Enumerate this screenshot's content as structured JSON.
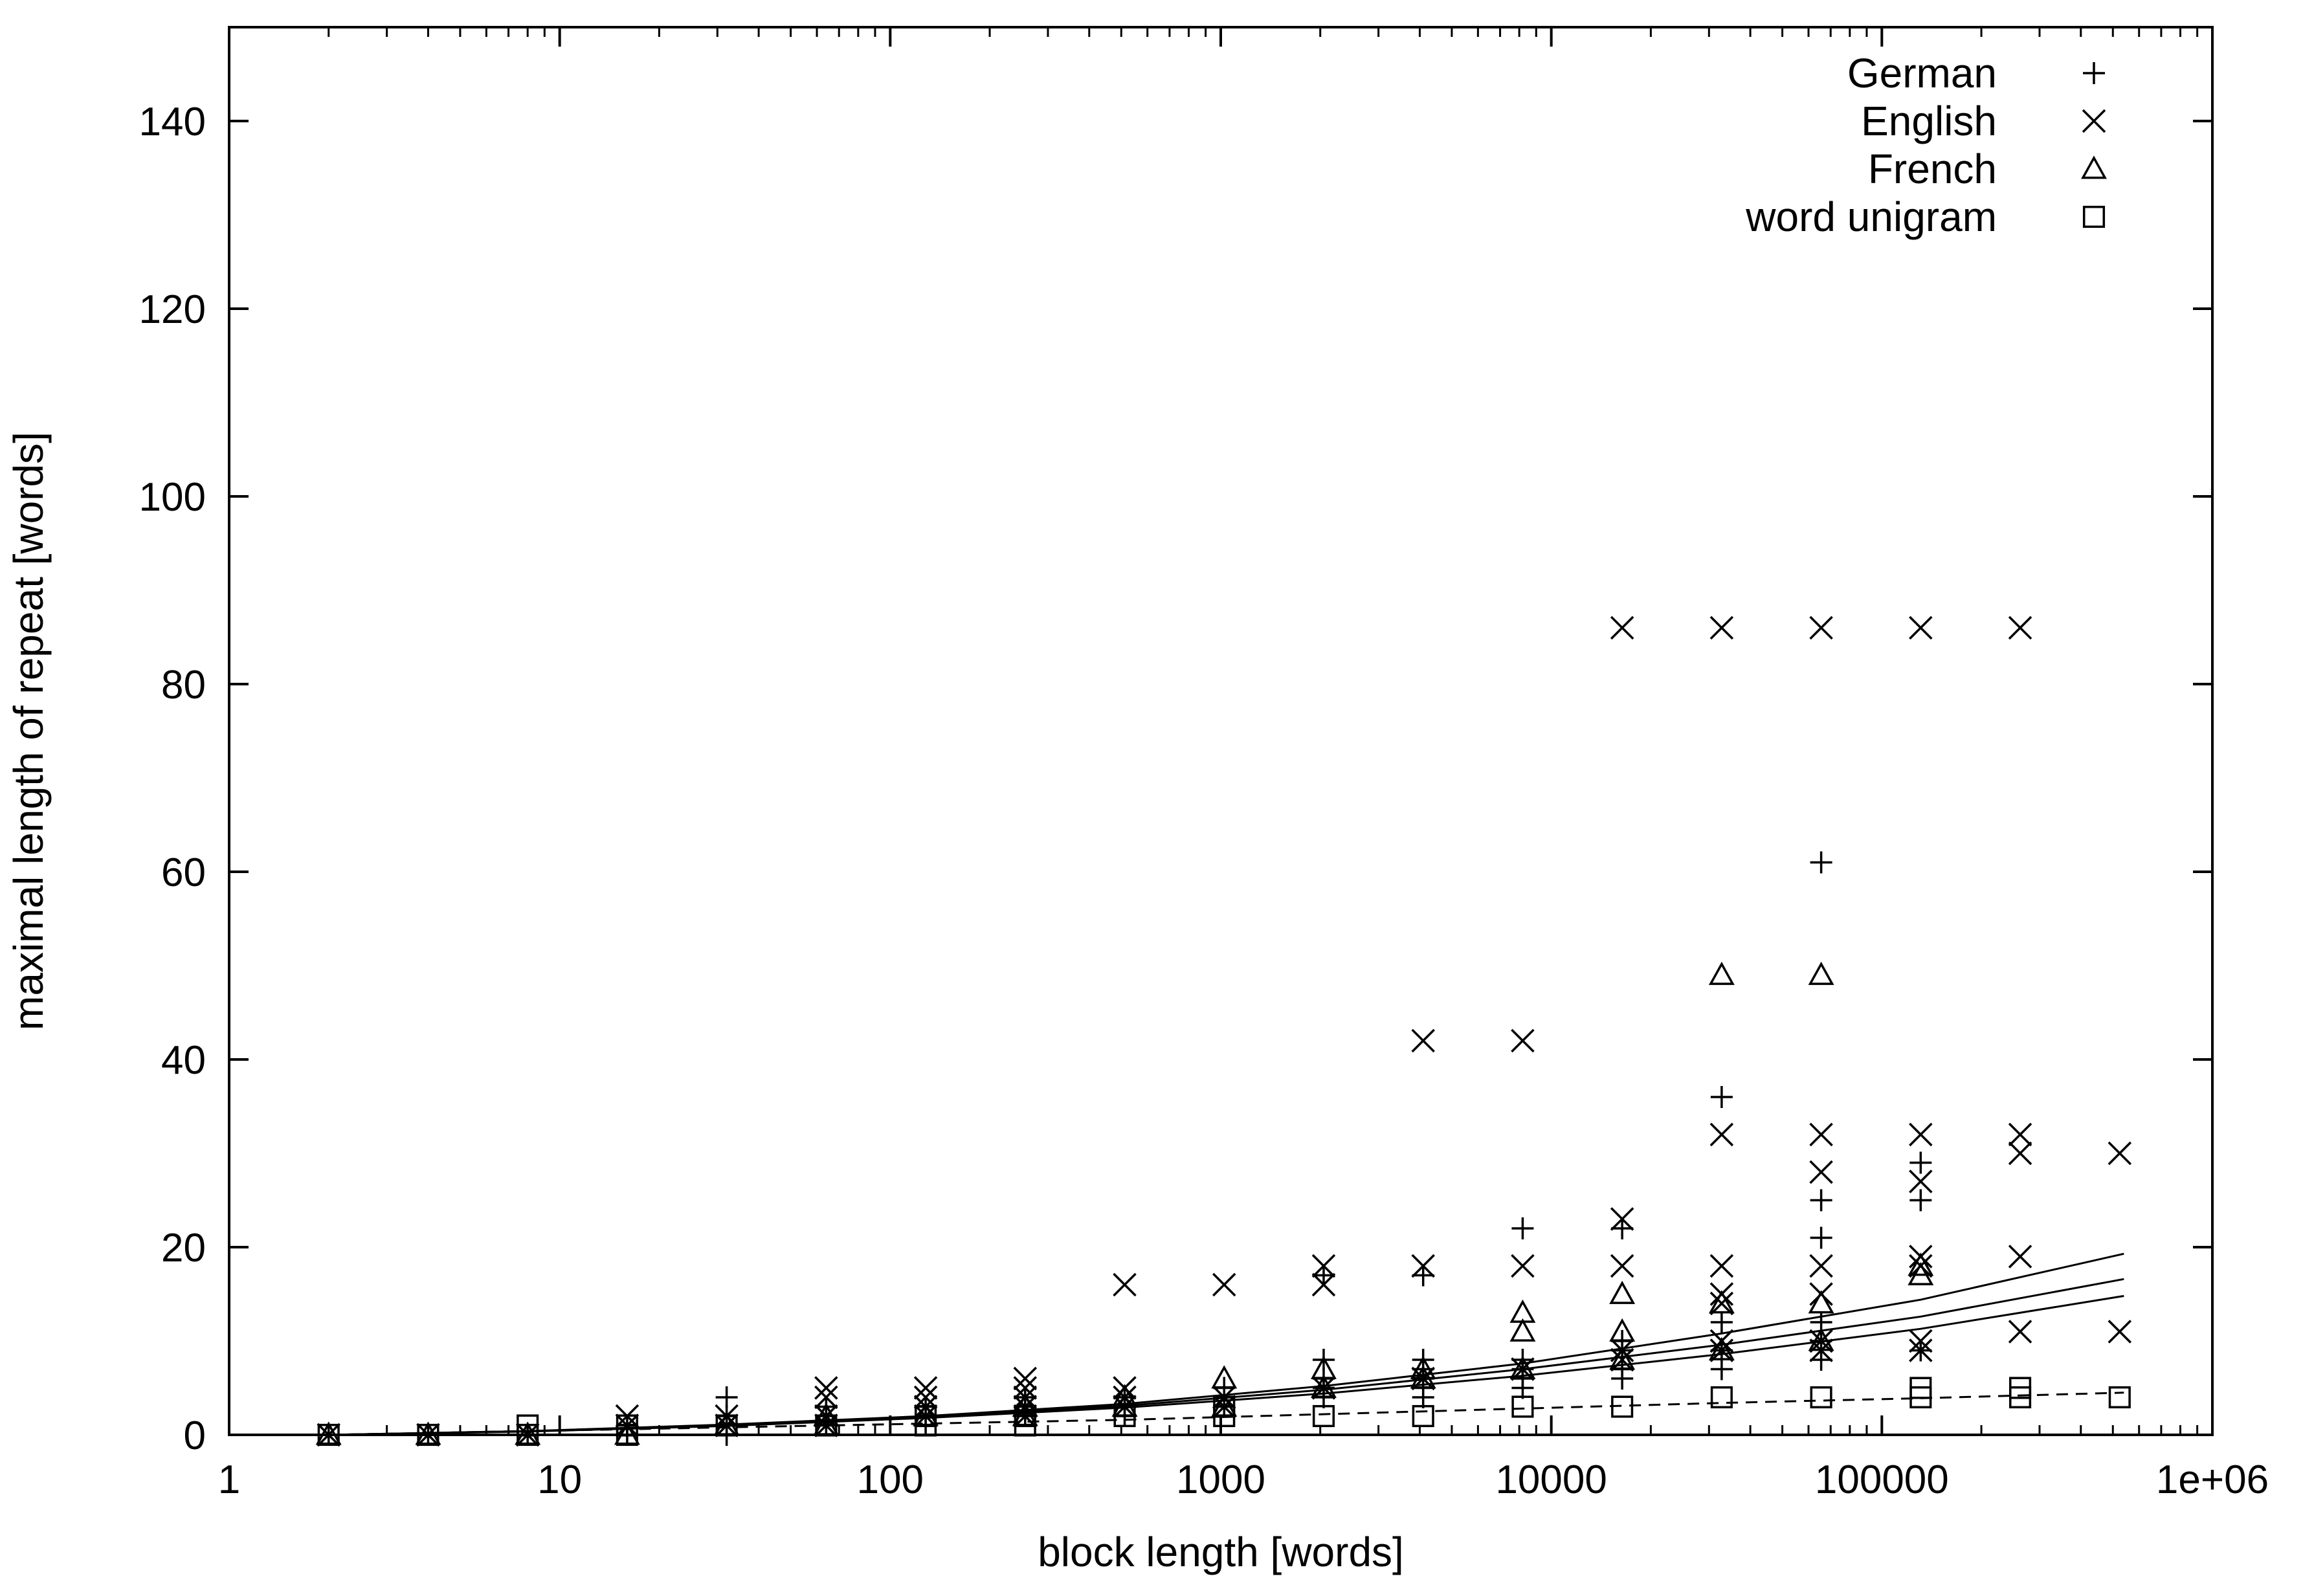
{
  "chart_data": {
    "type": "scatter",
    "xscale": "log",
    "xlim": [
      1,
      1000000
    ],
    "ylim": [
      0,
      150
    ],
    "xlabel": "block length [words]",
    "ylabel": "maximal length of repeat [words]",
    "x_ticks": [
      {
        "value": 1,
        "label": "1"
      },
      {
        "value": 10,
        "label": "10"
      },
      {
        "value": 100,
        "label": "100"
      },
      {
        "value": 1000,
        "label": "1000"
      },
      {
        "value": 10000,
        "label": "10000"
      },
      {
        "value": 100000,
        "label": "100000"
      },
      {
        "value": 1000000,
        "label": "1e+06"
      }
    ],
    "y_ticks": [
      {
        "value": 0,
        "label": "0"
      },
      {
        "value": 20,
        "label": "20"
      },
      {
        "value": 40,
        "label": "40"
      },
      {
        "value": 60,
        "label": "60"
      },
      {
        "value": 80,
        "label": "80"
      },
      {
        "value": 100,
        "label": "100"
      },
      {
        "value": 120,
        "label": "120"
      },
      {
        "value": 140,
        "label": "140"
      }
    ],
    "grid": false,
    "legend_position": "top-right",
    "series": [
      {
        "name": "German",
        "marker": "plus",
        "points": [
          [
            2,
            0
          ],
          [
            4,
            0
          ],
          [
            8,
            0
          ],
          [
            16,
            0
          ],
          [
            16,
            1
          ],
          [
            32,
            0
          ],
          [
            32,
            1
          ],
          [
            32,
            2
          ],
          [
            32,
            4
          ],
          [
            64,
            1
          ],
          [
            64,
            2
          ],
          [
            64,
            3
          ],
          [
            128,
            1
          ],
          [
            128,
            2
          ],
          [
            128,
            3
          ],
          [
            256,
            2
          ],
          [
            256,
            3
          ],
          [
            256,
            4
          ],
          [
            512,
            2
          ],
          [
            512,
            3
          ],
          [
            512,
            4
          ],
          [
            1024,
            3
          ],
          [
            1024,
            4
          ],
          [
            1024,
            5
          ],
          [
            2048,
            4
          ],
          [
            2048,
            5
          ],
          [
            2048,
            6
          ],
          [
            2048,
            8
          ],
          [
            2048,
            17
          ],
          [
            4096,
            4
          ],
          [
            4096,
            5
          ],
          [
            4096,
            6
          ],
          [
            4096,
            7
          ],
          [
            4096,
            8
          ],
          [
            4096,
            17
          ],
          [
            8192,
            5
          ],
          [
            8192,
            6
          ],
          [
            8192,
            7
          ],
          [
            8192,
            8
          ],
          [
            8192,
            22
          ],
          [
            16384,
            6
          ],
          [
            16384,
            7
          ],
          [
            16384,
            9
          ],
          [
            16384,
            10
          ],
          [
            16384,
            22
          ],
          [
            32768,
            7
          ],
          [
            32768,
            9
          ],
          [
            32768,
            12
          ],
          [
            32768,
            36
          ],
          [
            65536,
            8
          ],
          [
            65536,
            10
          ],
          [
            65536,
            12
          ],
          [
            65536,
            21
          ],
          [
            65536,
            25
          ],
          [
            65536,
            61
          ],
          [
            131072,
            9
          ],
          [
            131072,
            25
          ],
          [
            131072,
            29
          ]
        ]
      },
      {
        "name": "English",
        "marker": "cross",
        "points": [
          [
            2,
            0
          ],
          [
            4,
            0
          ],
          [
            8,
            0
          ],
          [
            16,
            1
          ],
          [
            16,
            2
          ],
          [
            32,
            1
          ],
          [
            32,
            2
          ],
          [
            64,
            1
          ],
          [
            64,
            2
          ],
          [
            64,
            4
          ],
          [
            64,
            5
          ],
          [
            128,
            2
          ],
          [
            128,
            3
          ],
          [
            128,
            4
          ],
          [
            128,
            5
          ],
          [
            256,
            2
          ],
          [
            256,
            3
          ],
          [
            256,
            4
          ],
          [
            256,
            5
          ],
          [
            256,
            6
          ],
          [
            512,
            3
          ],
          [
            512,
            4
          ],
          [
            512,
            5
          ],
          [
            512,
            16
          ],
          [
            1024,
            3
          ],
          [
            1024,
            4
          ],
          [
            1024,
            16
          ],
          [
            2048,
            5
          ],
          [
            2048,
            16
          ],
          [
            2048,
            18
          ],
          [
            4096,
            6
          ],
          [
            4096,
            18
          ],
          [
            4096,
            42
          ],
          [
            8192,
            7
          ],
          [
            8192,
            18
          ],
          [
            8192,
            42
          ],
          [
            16384,
            8
          ],
          [
            16384,
            9
          ],
          [
            16384,
            18
          ],
          [
            16384,
            23
          ],
          [
            16384,
            86
          ],
          [
            32768,
            9
          ],
          [
            32768,
            10
          ],
          [
            32768,
            14
          ],
          [
            32768,
            15
          ],
          [
            32768,
            18
          ],
          [
            32768,
            32
          ],
          [
            32768,
            86
          ],
          [
            65536,
            9
          ],
          [
            65536,
            10
          ],
          [
            65536,
            15
          ],
          [
            65536,
            18
          ],
          [
            65536,
            28
          ],
          [
            65536,
            32
          ],
          [
            65536,
            86
          ],
          [
            131072,
            9
          ],
          [
            131072,
            10
          ],
          [
            131072,
            18
          ],
          [
            131072,
            19
          ],
          [
            131072,
            27
          ],
          [
            131072,
            32
          ],
          [
            131072,
            86
          ],
          [
            262144,
            11
          ],
          [
            262144,
            19
          ],
          [
            262144,
            30
          ],
          [
            262144,
            32
          ],
          [
            262144,
            86
          ],
          [
            524288,
            11
          ],
          [
            524288,
            30
          ]
        ]
      },
      {
        "name": "French",
        "marker": "triangle",
        "points": [
          [
            2,
            0
          ],
          [
            4,
            0
          ],
          [
            8,
            0
          ],
          [
            16,
            0
          ],
          [
            32,
            1
          ],
          [
            64,
            1
          ],
          [
            64,
            2
          ],
          [
            128,
            2
          ],
          [
            256,
            2
          ],
          [
            256,
            3
          ],
          [
            512,
            3
          ],
          [
            512,
            4
          ],
          [
            1024,
            3
          ],
          [
            1024,
            6
          ],
          [
            2048,
            5
          ],
          [
            2048,
            7
          ],
          [
            4096,
            6
          ],
          [
            4096,
            7
          ],
          [
            8192,
            7
          ],
          [
            8192,
            11
          ],
          [
            8192,
            13
          ],
          [
            16384,
            8
          ],
          [
            16384,
            11
          ],
          [
            16384,
            15
          ],
          [
            32768,
            9
          ],
          [
            32768,
            14
          ],
          [
            32768,
            49
          ],
          [
            65536,
            10
          ],
          [
            65536,
            14
          ],
          [
            65536,
            49
          ],
          [
            131072,
            17
          ],
          [
            131072,
            18
          ]
        ]
      },
      {
        "name": "word unigram",
        "marker": "square",
        "points": [
          [
            2,
            0
          ],
          [
            4,
            0
          ],
          [
            8,
            0
          ],
          [
            8,
            1
          ],
          [
            16,
            0
          ],
          [
            16,
            1
          ],
          [
            32,
            1
          ],
          [
            64,
            1
          ],
          [
            128,
            1
          ],
          [
            128,
            2
          ],
          [
            256,
            1
          ],
          [
            256,
            2
          ],
          [
            512,
            2
          ],
          [
            1024,
            2
          ],
          [
            1024,
            3
          ],
          [
            2048,
            2
          ],
          [
            4096,
            2
          ],
          [
            8192,
            3
          ],
          [
            16384,
            3
          ],
          [
            32768,
            4
          ],
          [
            65536,
            4
          ],
          [
            131072,
            4
          ],
          [
            131072,
            5
          ],
          [
            262144,
            4
          ],
          [
            262144,
            5
          ],
          [
            524288,
            4
          ]
        ]
      }
    ],
    "fit_curves": [
      {
        "style": "solid",
        "points": [
          [
            2,
            0
          ],
          [
            8,
            0.4
          ],
          [
            32,
            1.1
          ],
          [
            128,
            2.0
          ],
          [
            512,
            3.3
          ],
          [
            2048,
            5.2
          ],
          [
            8192,
            7.6
          ],
          [
            32768,
            10.8
          ],
          [
            131072,
            14.4
          ],
          [
            540000,
            19.3
          ]
        ]
      },
      {
        "style": "solid",
        "points": [
          [
            2,
            0
          ],
          [
            8,
            0.4
          ],
          [
            32,
            1.0
          ],
          [
            128,
            1.9
          ],
          [
            512,
            3.1
          ],
          [
            2048,
            4.8
          ],
          [
            8192,
            7.0
          ],
          [
            32768,
            9.6
          ],
          [
            131072,
            12.6
          ],
          [
            540000,
            16.6
          ]
        ]
      },
      {
        "style": "solid",
        "points": [
          [
            2,
            0
          ],
          [
            8,
            0.35
          ],
          [
            32,
            0.95
          ],
          [
            128,
            1.8
          ],
          [
            512,
            2.9
          ],
          [
            2048,
            4.4
          ],
          [
            8192,
            6.3
          ],
          [
            32768,
            8.6
          ],
          [
            131072,
            11.3
          ],
          [
            540000,
            14.8
          ]
        ]
      },
      {
        "style": "dashed",
        "points": [
          [
            2,
            0
          ],
          [
            8,
            0.4
          ],
          [
            32,
            0.8
          ],
          [
            128,
            1.2
          ],
          [
            512,
            1.6
          ],
          [
            2048,
            2.2
          ],
          [
            8192,
            2.8
          ],
          [
            32768,
            3.4
          ],
          [
            131072,
            3.9
          ],
          [
            540000,
            4.5
          ]
        ]
      }
    ]
  }
}
